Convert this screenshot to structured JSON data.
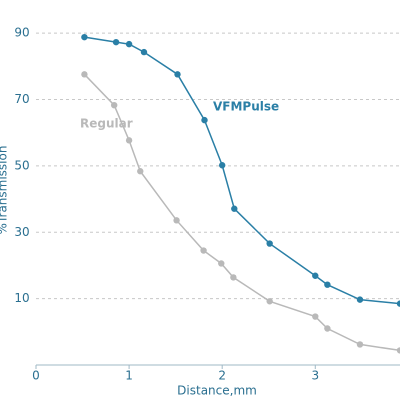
{
  "chart_data": {
    "type": "line",
    "x_label": "Distance,mm",
    "y_label": "%Transmission",
    "xlim": [
      0,
      3.91
    ],
    "xticks": [
      0,
      1,
      2,
      3
    ],
    "ylim": [
      -10,
      100
    ],
    "yticks": [
      10,
      30,
      50,
      70,
      90
    ],
    "grid": true,
    "series": [
      {
        "name": "VFMPulse",
        "color": "#2a7fa6",
        "x": [
          0.52,
          0.86,
          1.0,
          1.16,
          1.52,
          1.81,
          2.0,
          2.13,
          2.51,
          3.0,
          3.13,
          3.48,
          3.91
        ],
        "values": [
          88.8,
          87.3,
          86.7,
          84.3,
          77.6,
          63.8,
          50.2,
          37.1,
          26.6,
          16.9,
          14.2,
          9.7,
          8.5
        ]
      },
      {
        "name": "Regular",
        "color": "#b9b9b9",
        "x": [
          0.52,
          0.84,
          1.0,
          1.12,
          1.51,
          1.8,
          1.99,
          2.12,
          2.51,
          3.0,
          3.13,
          3.48,
          3.91
        ],
        "values": [
          77.6,
          68.3,
          57.7,
          48.4,
          33.6,
          24.5,
          20.6,
          16.4,
          9.2,
          4.6,
          1.0,
          -3.8,
          -5.6
        ]
      }
    ]
  }
}
